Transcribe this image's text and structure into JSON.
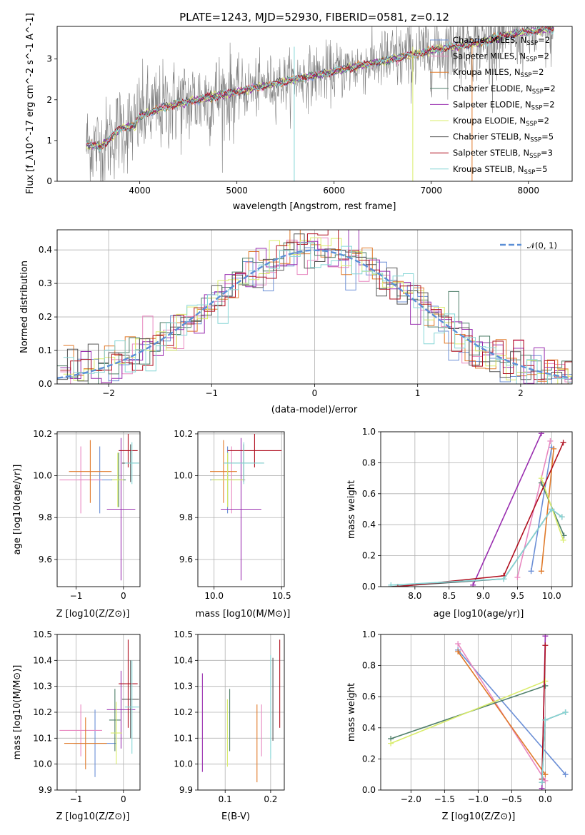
{
  "figure": {
    "title": "PLATE=1243, MJD=52930, FIBERID=0581, z=0.12"
  },
  "model_colors": {
    "Chabrier MILES": "#6b8fd6",
    "Salpeter MILES": "#e888c0",
    "Kroupa MILES": "#e07a2a",
    "Chabrier ELODIE": "#4f7f6a",
    "Salpeter ELODIE": "#9a2fb0",
    "Kroupa ELODIE": "#d9ec6a",
    "Chabrier STELIB": "#555555",
    "Salpeter STELIB": "#b01020",
    "Kroupa STELIB": "#85d6d6"
  },
  "chart_data": [
    {
      "type": "line",
      "title": "PLATE=1243, MJD=52930, FIBERID=0581, z=0.12",
      "xlabel": "wavelength [Angstrom, rest frame]",
      "ylabel": "Flux [f_λ10^-17 erg cm^-2 s^-1 A^-1]",
      "xlim": [
        3150,
        8450
      ],
      "ylim": [
        0,
        3.8
      ],
      "xticks": [
        4000,
        5000,
        6000,
        7000,
        8000
      ],
      "yticks": [
        0,
        1,
        2,
        3
      ],
      "legend_position": "right",
      "legend": [
        {
          "name": "Chabrier MILES",
          "nssp": "2"
        },
        {
          "name": "Salpeter MILES",
          "nssp": "2"
        },
        {
          "name": "Kroupa MILES",
          "nssp": "2"
        },
        {
          "name": "Chabrier ELODIE",
          "nssp": "2"
        },
        {
          "name": "Salpeter ELODIE",
          "nssp": "2"
        },
        {
          "name": "Kroupa ELODIE",
          "nssp": "2"
        },
        {
          "name": "Chabrier STELIB",
          "nssp": "5"
        },
        {
          "name": "Salpeter STELIB",
          "nssp": "3"
        },
        {
          "name": "Kroupa STELIB",
          "nssp": "5"
        }
      ],
      "data_color": "#808080",
      "continuum": {
        "x": [
          3450,
          3600,
          3700,
          3800,
          3950,
          4000,
          4100,
          4300,
          4500,
          4800,
          5000,
          5200,
          5500,
          5800,
          6000,
          6300,
          6600,
          6900,
          7200,
          7500,
          7800,
          8100,
          8250
        ],
        "y": [
          0.9,
          0.85,
          1.05,
          1.3,
          1.35,
          1.6,
          1.7,
          1.85,
          1.95,
          2.1,
          2.2,
          2.3,
          2.45,
          2.6,
          2.7,
          2.85,
          3.0,
          3.15,
          3.3,
          3.4,
          3.6,
          3.7,
          3.75
        ]
      }
    },
    {
      "type": "line",
      "xlabel": "(data-model)/error",
      "ylabel": "Normed distribution",
      "xlim": [
        -2.5,
        2.5
      ],
      "ylim": [
        0,
        0.46
      ],
      "xticks": [
        -2,
        -1,
        0,
        1,
        2
      ],
      "yticks": [
        0.0,
        0.1,
        0.2,
        0.3,
        0.4
      ],
      "legend": [
        "𝒩(0, 1)"
      ],
      "legend_position": "upper right",
      "grid": true,
      "reference_color": "#5b8fd6"
    },
    {
      "type": "scatter",
      "xlabel": "Z [log10(Z/Z⊙)]",
      "ylabel": "age [log10(age/yr)]",
      "xlim": [
        -1.4,
        0.35
      ],
      "ylim": [
        9.47,
        10.21
      ],
      "xticks": [
        -1,
        0
      ],
      "yticks": [
        9.6,
        9.8,
        10.0,
        10.2
      ],
      "grid": true,
      "points": [
        {
          "model": "Chabrier MILES",
          "x": -0.5,
          "y": 9.98,
          "xerr": 0.45,
          "yerr": 0.16
        },
        {
          "model": "Salpeter MILES",
          "x": -0.9,
          "y": 9.98,
          "xerr": 0.45,
          "yerr": 0.16
        },
        {
          "model": "Kroupa MILES",
          "x": -0.7,
          "y": 10.02,
          "xerr": 0.45,
          "yerr": 0.15
        },
        {
          "model": "Chabrier ELODIE",
          "x": -0.1,
          "y": 9.98,
          "xerr": 0.15,
          "yerr": 0.13
        },
        {
          "model": "Salpeter ELODIE",
          "x": -0.05,
          "y": 9.84,
          "xerr": 0.3,
          "yerr": 0.34
        },
        {
          "model": "Kroupa ELODIE",
          "x": -0.12,
          "y": 9.98,
          "xerr": 0.12,
          "yerr": 0.13
        },
        {
          "model": "Chabrier STELIB",
          "x": 0.15,
          "y": 10.06,
          "xerr": 0.18,
          "yerr": 0.09
        },
        {
          "model": "Salpeter STELIB",
          "x": 0.1,
          "y": 10.12,
          "xerr": 0.2,
          "yerr": 0.08
        },
        {
          "model": "Kroupa STELIB",
          "x": 0.18,
          "y": 10.06,
          "xerr": 0.15,
          "yerr": 0.1
        }
      ]
    },
    {
      "type": "scatter",
      "xlabel": "mass [log10(M/M⊙)]",
      "xlim": [
        9.88,
        10.52
      ],
      "ylim": [
        9.47,
        10.21
      ],
      "xticks": [
        10.0,
        10.5
      ],
      "yticks": [
        9.6,
        9.8,
        10.0,
        10.2
      ],
      "grid": true,
      "points": [
        {
          "model": "Chabrier MILES",
          "x": 10.1,
          "y": 9.98,
          "xerr": 0.13,
          "yerr": 0.16
        },
        {
          "model": "Salpeter MILES",
          "x": 10.13,
          "y": 9.98,
          "xerr": 0.1,
          "yerr": 0.16
        },
        {
          "model": "Kroupa MILES",
          "x": 10.07,
          "y": 10.02,
          "xerr": 0.1,
          "yerr": 0.15
        },
        {
          "model": "Chabrier ELODIE",
          "x": 10.1,
          "y": 9.98,
          "xerr": 0.12,
          "yerr": 0.13
        },
        {
          "model": "Salpeter ELODIE",
          "x": 10.2,
          "y": 9.84,
          "xerr": 0.15,
          "yerr": 0.34
        },
        {
          "model": "Kroupa ELODIE",
          "x": 10.1,
          "y": 9.98,
          "xerr": 0.12,
          "yerr": 0.13
        },
        {
          "model": "Chabrier STELIB",
          "x": 10.22,
          "y": 10.06,
          "xerr": 0.15,
          "yerr": 0.09
        },
        {
          "model": "Salpeter STELIB",
          "x": 10.3,
          "y": 10.12,
          "xerr": 0.2,
          "yerr": 0.08
        },
        {
          "model": "Kroupa STELIB",
          "x": 10.22,
          "y": 10.06,
          "xerr": 0.15,
          "yerr": 0.1
        }
      ]
    },
    {
      "type": "line",
      "xlabel": "age [log10(age/yr)]",
      "ylabel": "mass weight",
      "xlim": [
        7.5,
        10.3
      ],
      "ylim": [
        0,
        1.0
      ],
      "xticks": [
        8.0,
        8.5,
        9.0,
        9.5,
        10.0
      ],
      "yticks": [
        0.0,
        0.2,
        0.4,
        0.6,
        0.8,
        1.0
      ],
      "grid": true,
      "series": [
        {
          "model": "Chabrier MILES",
          "x": [
            9.7,
            10.0
          ],
          "y": [
            0.1,
            0.9
          ]
        },
        {
          "model": "Salpeter MILES",
          "x": [
            9.5,
            9.98
          ],
          "y": [
            0.06,
            0.94
          ]
        },
        {
          "model": "Kroupa MILES",
          "x": [
            9.85,
            10.03
          ],
          "y": [
            0.1,
            0.89
          ]
        },
        {
          "model": "Chabrier ELODIE",
          "x": [
            9.85,
            10.18
          ],
          "y": [
            0.67,
            0.33
          ]
        },
        {
          "model": "Salpeter ELODIE",
          "x": [
            8.85,
            9.85
          ],
          "y": [
            0.01,
            0.99
          ]
        },
        {
          "model": "Kroupa ELODIE",
          "x": [
            9.85,
            10.17
          ],
          "y": [
            0.7,
            0.3
          ]
        },
        {
          "model": "Chabrier STELIB",
          "x": [
            7.65,
            9.3,
            10.0,
            10.15
          ],
          "y": [
            0.0,
            0.05,
            0.5,
            0.45
          ]
        },
        {
          "model": "Salpeter STELIB",
          "x": [
            7.75,
            9.3,
            10.17
          ],
          "y": [
            0.0,
            0.07,
            0.93
          ]
        },
        {
          "model": "Kroupa STELIB",
          "x": [
            7.65,
            9.3,
            10.0,
            10.15
          ],
          "y": [
            0.01,
            0.05,
            0.5,
            0.45
          ]
        }
      ]
    },
    {
      "type": "scatter",
      "xlabel": "Z [log10(Z/Z⊙)]",
      "ylabel": "mass [log10(M/M⊙)]",
      "xlim": [
        -1.4,
        0.35
      ],
      "ylim": [
        9.9,
        10.5
      ],
      "xticks": [
        -1,
        0
      ],
      "yticks": [
        9.9,
        10.0,
        10.1,
        10.2,
        10.3,
        10.4,
        10.5
      ],
      "grid": true,
      "points": [
        {
          "model": "Chabrier MILES",
          "x": -0.6,
          "y": 10.08,
          "xerr": 0.45,
          "yerr": 0.13
        },
        {
          "model": "Salpeter MILES",
          "x": -0.9,
          "y": 10.13,
          "xerr": 0.45,
          "yerr": 0.1
        },
        {
          "model": "Kroupa MILES",
          "x": -0.8,
          "y": 10.08,
          "xerr": 0.45,
          "yerr": 0.1
        },
        {
          "model": "Chabrier ELODIE",
          "x": -0.18,
          "y": 10.17,
          "xerr": 0.12,
          "yerr": 0.12
        },
        {
          "model": "Salpeter ELODIE",
          "x": -0.05,
          "y": 10.21,
          "xerr": 0.3,
          "yerr": 0.15
        },
        {
          "model": "Kroupa ELODIE",
          "x": -0.15,
          "y": 10.12,
          "xerr": 0.12,
          "yerr": 0.12
        },
        {
          "model": "Chabrier STELIB",
          "x": 0.15,
          "y": 10.25,
          "xerr": 0.18,
          "yerr": 0.15
        },
        {
          "model": "Salpeter STELIB",
          "x": 0.1,
          "y": 10.31,
          "xerr": 0.2,
          "yerr": 0.17
        },
        {
          "model": "Kroupa STELIB",
          "x": 0.18,
          "y": 10.22,
          "xerr": 0.15,
          "yerr": 0.18
        }
      ]
    },
    {
      "type": "scatter",
      "xlabel": "E(B-V)",
      "xlim": [
        0.04,
        0.23
      ],
      "ylim": [
        9.9,
        10.5
      ],
      "xticks": [
        0.1,
        0.2
      ],
      "yticks": [
        9.9,
        10.0,
        10.1,
        10.2,
        10.3,
        10.4,
        10.5
      ],
      "grid": true,
      "points": [
        {
          "model": "Salpeter ELODIE",
          "x": 0.05,
          "y": 10.16,
          "xerr": 0.0,
          "yerr": 0.19
        },
        {
          "model": "Kroupa ELODIE",
          "x": 0.105,
          "y": 10.12,
          "xerr": 0.0,
          "yerr": 0.13
        },
        {
          "model": "Chabrier ELODIE",
          "x": 0.11,
          "y": 10.17,
          "xerr": 0.0,
          "yerr": 0.12
        },
        {
          "model": "Kroupa MILES",
          "x": 0.17,
          "y": 10.08,
          "xerr": 0.0,
          "yerr": 0.15
        },
        {
          "model": "Salpeter MILES",
          "x": 0.18,
          "y": 10.13,
          "xerr": 0.0,
          "yerr": 0.1
        },
        {
          "model": "Kroupa STELIB",
          "x": 0.2,
          "y": 10.22,
          "xerr": 0.0,
          "yerr": 0.2
        },
        {
          "model": "Chabrier STELIB",
          "x": 0.205,
          "y": 10.25,
          "xerr": 0.0,
          "yerr": 0.16
        },
        {
          "model": "Salpeter STELIB",
          "x": 0.22,
          "y": 10.31,
          "xerr": 0.0,
          "yerr": 0.17
        }
      ]
    },
    {
      "type": "line",
      "xlabel": "Z [log10(Z/Z⊙)]",
      "ylabel": "mass weight",
      "xlim": [
        -2.45,
        0.4
      ],
      "ylim": [
        0,
        1.0
      ],
      "xticks": [
        -2.0,
        -1.5,
        -1.0,
        -0.5,
        0.0
      ],
      "yticks": [
        0.0,
        0.2,
        0.4,
        0.6,
        0.8,
        1.0
      ],
      "grid": true,
      "series": [
        {
          "model": "Chabrier MILES",
          "x": [
            -1.3,
            0.3
          ],
          "y": [
            0.9,
            0.1
          ]
        },
        {
          "model": "Salpeter MILES",
          "x": [
            -1.3,
            0.0
          ],
          "y": [
            0.94,
            0.06
          ]
        },
        {
          "model": "Kroupa MILES",
          "x": [
            -1.3,
            0.0
          ],
          "y": [
            0.89,
            0.1
          ]
        },
        {
          "model": "Chabrier ELODIE",
          "x": [
            -2.3,
            0.0
          ],
          "y": [
            0.33,
            0.67
          ]
        },
        {
          "model": "Salpeter ELODIE",
          "x": [
            -0.05,
            0.0
          ],
          "y": [
            0.01,
            0.99
          ]
        },
        {
          "model": "Kroupa ELODIE",
          "x": [
            -2.3,
            0.0
          ],
          "y": [
            0.3,
            0.7
          ]
        },
        {
          "model": "Chabrier STELIB",
          "x": [
            -0.05,
            0.0,
            0.3
          ],
          "y": [
            0.05,
            0.45,
            0.5
          ]
        },
        {
          "model": "Salpeter STELIB",
          "x": [
            -0.05,
            0.0
          ],
          "y": [
            0.07,
            0.93
          ]
        },
        {
          "model": "Kroupa STELIB",
          "x": [
            -0.05,
            0.0,
            0.3
          ],
          "y": [
            0.05,
            0.45,
            0.5
          ]
        }
      ]
    }
  ]
}
